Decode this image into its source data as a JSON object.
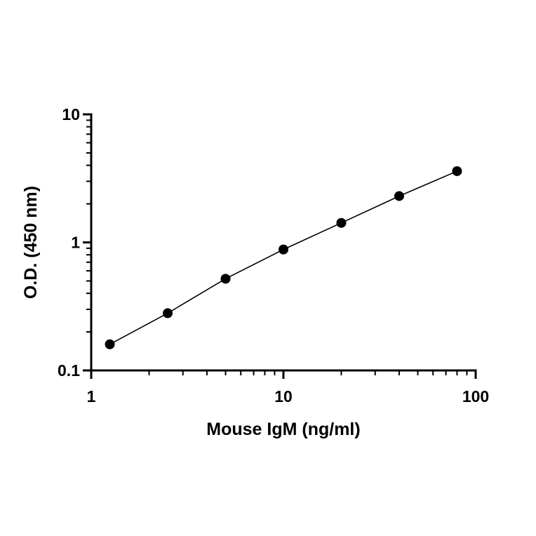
{
  "chart_data": {
    "type": "scatter",
    "title": "",
    "xlabel": "Mouse IgM (ng/ml)",
    "ylabel": "O.D. (450 nm)",
    "xscale": "log",
    "yscale": "log",
    "xlim": [
      1,
      100
    ],
    "ylim": [
      0.1,
      10
    ],
    "x_ticks": [
      "1",
      "10",
      "100"
    ],
    "y_ticks": [
      "0.1",
      "1",
      "10"
    ],
    "grid": false,
    "legend": "none",
    "colors": {
      "points": "#000000",
      "line": "#000000"
    },
    "series": [
      {
        "x": [
          1.25,
          2.5,
          5,
          10,
          20,
          40,
          80
        ],
        "y": [
          0.16,
          0.28,
          0.52,
          0.88,
          1.42,
          2.3,
          3.6
        ]
      }
    ],
    "fit_line": true
  }
}
